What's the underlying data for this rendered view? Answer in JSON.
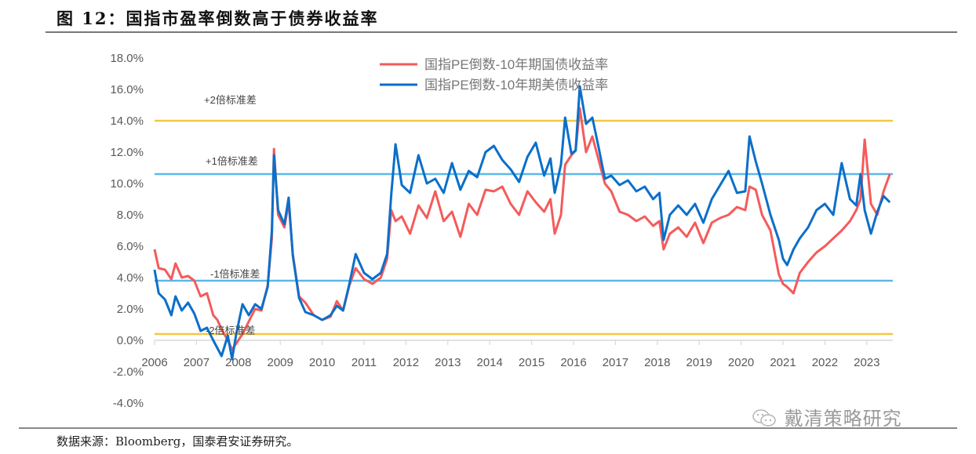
{
  "header": {
    "title": "图 12：国指市盈率倒数高于债券收益率"
  },
  "footer": {
    "source": "数据来源：Bloomberg，国泰君安证券研究。",
    "watermark": "戴清策略研究",
    "watermark_icon": "wechat-icon"
  },
  "chart_data": {
    "type": "line",
    "title": "图 12：国指市盈率倒数高于债券收益率",
    "xlabel": "",
    "ylabel": "",
    "ylim": [
      -4,
      18
    ],
    "xlim": [
      2006,
      2023.6
    ],
    "yticks": [
      "-4.0%",
      "-2.0%",
      "0.0%",
      "2.0%",
      "4.0%",
      "6.0%",
      "8.0%",
      "10.0%",
      "12.0%",
      "14.0%",
      "16.0%",
      "18.0%"
    ],
    "ytick_values": [
      -4,
      -2,
      0,
      2,
      4,
      6,
      8,
      10,
      12,
      14,
      16,
      18
    ],
    "xticks": [
      "2006",
      "2007",
      "2008",
      "2009",
      "2010",
      "2011",
      "2012",
      "2013",
      "2014",
      "2015",
      "2016",
      "2017",
      "2018",
      "2019",
      "2020",
      "2021",
      "2022",
      "2023"
    ],
    "grid": false,
    "legend": {
      "position": "top-center"
    },
    "colors": {
      "cn": "#F45B5B",
      "us": "#0B6FC9",
      "sd2": "#F2C744",
      "sd1": "#5DB8E8",
      "axis": "#D9D9D9"
    },
    "reference_lines": [
      {
        "label": "+2倍标准差",
        "value": 14.0,
        "color_key": "sd2"
      },
      {
        "label": "+1倍标准差",
        "value": 10.6,
        "color_key": "sd1"
      },
      {
        "label": "-1倍标准差",
        "value": 3.8,
        "color_key": "sd1"
      },
      {
        "label": "-2倍标准差",
        "value": 0.4,
        "color_key": "sd2"
      }
    ],
    "series": [
      {
        "name": "国指PE倒数-10年期国债收益率",
        "color_key": "cn",
        "x": [
          2006.0,
          2006.1,
          2006.25,
          2006.4,
          2006.5,
          2006.65,
          2006.8,
          2006.95,
          2007.1,
          2007.25,
          2007.4,
          2007.5,
          2007.6,
          2007.75,
          2007.85,
          2007.95,
          2008.1,
          2008.25,
          2008.4,
          2008.55,
          2008.7,
          2008.8,
          2008.85,
          2008.95,
          2009.1,
          2009.2,
          2009.3,
          2009.45,
          2009.6,
          2009.8,
          2010.0,
          2010.2,
          2010.35,
          2010.5,
          2010.65,
          2010.8,
          2011.0,
          2011.2,
          2011.4,
          2011.55,
          2011.65,
          2011.75,
          2011.9,
          2012.1,
          2012.3,
          2012.5,
          2012.7,
          2012.9,
          2013.1,
          2013.3,
          2013.5,
          2013.7,
          2013.9,
          2014.1,
          2014.3,
          2014.5,
          2014.7,
          2014.9,
          2015.1,
          2015.3,
          2015.45,
          2015.55,
          2015.7,
          2015.8,
          2015.95,
          2016.05,
          2016.15,
          2016.3,
          2016.45,
          2016.6,
          2016.75,
          2016.9,
          2017.1,
          2017.3,
          2017.5,
          2017.7,
          2017.9,
          2018.05,
          2018.15,
          2018.3,
          2018.5,
          2018.7,
          2018.9,
          2019.1,
          2019.3,
          2019.5,
          2019.7,
          2019.9,
          2020.1,
          2020.2,
          2020.35,
          2020.5,
          2020.7,
          2020.9,
          2021.0,
          2021.1,
          2021.25,
          2021.4,
          2021.6,
          2021.8,
          2022.0,
          2022.2,
          2022.4,
          2022.6,
          2022.75,
          2022.85,
          2022.95,
          2023.1,
          2023.25,
          2023.4,
          2023.55
        ],
        "values": [
          5.8,
          4.6,
          4.5,
          3.9,
          4.9,
          4.0,
          4.1,
          3.8,
          2.8,
          3.0,
          1.6,
          1.3,
          0.7,
          0.0,
          -0.6,
          -0.2,
          0.4,
          1.2,
          2.0,
          1.9,
          3.5,
          6.5,
          12.2,
          8.0,
          7.2,
          8.8,
          5.5,
          2.8,
          2.4,
          1.6,
          1.3,
          1.5,
          2.5,
          1.9,
          3.5,
          4.6,
          3.9,
          3.6,
          4.0,
          5.2,
          8.3,
          7.6,
          7.9,
          6.8,
          8.6,
          7.8,
          9.5,
          7.6,
          8.2,
          6.6,
          8.7,
          8.0,
          9.6,
          9.5,
          9.8,
          8.7,
          8.0,
          9.5,
          8.8,
          8.2,
          9.0,
          6.8,
          8.0,
          11.2,
          11.8,
          12.1,
          14.8,
          12.0,
          13.0,
          11.5,
          10.0,
          9.5,
          8.2,
          8.0,
          7.6,
          7.9,
          7.3,
          7.6,
          5.8,
          6.8,
          7.2,
          6.6,
          7.5,
          6.2,
          7.5,
          7.8,
          8.0,
          8.5,
          8.3,
          9.8,
          9.6,
          8.0,
          7.0,
          4.2,
          3.6,
          3.4,
          3.0,
          4.3,
          5.0,
          5.6,
          6.0,
          6.5,
          7.0,
          7.6,
          8.3,
          9.0,
          12.8,
          8.7,
          8.0,
          9.5,
          10.6
        ]
      },
      {
        "name": "国指PE倒数-10年期美债收益率",
        "color_key": "us",
        "x": [
          2006.0,
          2006.1,
          2006.25,
          2006.4,
          2006.5,
          2006.65,
          2006.8,
          2006.95,
          2007.1,
          2007.25,
          2007.4,
          2007.5,
          2007.6,
          2007.75,
          2007.85,
          2007.95,
          2008.1,
          2008.25,
          2008.4,
          2008.55,
          2008.7,
          2008.8,
          2008.85,
          2008.95,
          2009.1,
          2009.2,
          2009.3,
          2009.45,
          2009.6,
          2009.8,
          2010.0,
          2010.2,
          2010.35,
          2010.5,
          2010.65,
          2010.8,
          2011.0,
          2011.2,
          2011.4,
          2011.55,
          2011.65,
          2011.75,
          2011.9,
          2012.1,
          2012.3,
          2012.5,
          2012.7,
          2012.9,
          2013.1,
          2013.3,
          2013.5,
          2013.7,
          2013.9,
          2014.1,
          2014.3,
          2014.5,
          2014.7,
          2014.9,
          2015.1,
          2015.3,
          2015.45,
          2015.55,
          2015.7,
          2015.8,
          2015.95,
          2016.05,
          2016.15,
          2016.3,
          2016.45,
          2016.6,
          2016.75,
          2016.9,
          2017.1,
          2017.3,
          2017.5,
          2017.7,
          2017.9,
          2018.05,
          2018.15,
          2018.3,
          2018.5,
          2018.7,
          2018.9,
          2019.1,
          2019.3,
          2019.5,
          2019.7,
          2019.9,
          2020.1,
          2020.2,
          2020.35,
          2020.5,
          2020.7,
          2020.9,
          2021.0,
          2021.1,
          2021.25,
          2021.4,
          2021.6,
          2021.8,
          2022.0,
          2022.2,
          2022.4,
          2022.6,
          2022.75,
          2022.85,
          2022.95,
          2023.1,
          2023.25,
          2023.4,
          2023.55
        ],
        "values": [
          4.5,
          3.0,
          2.6,
          1.6,
          2.8,
          1.9,
          2.4,
          1.7,
          0.6,
          0.8,
          0.0,
          -0.5,
          -1.0,
          0.3,
          -1.2,
          0.4,
          2.3,
          1.6,
          2.3,
          2.0,
          3.4,
          7.0,
          11.8,
          8.3,
          7.4,
          9.1,
          5.4,
          2.7,
          1.8,
          1.6,
          1.3,
          1.6,
          2.2,
          1.9,
          3.6,
          5.5,
          4.3,
          3.9,
          4.3,
          5.5,
          9.3,
          12.5,
          9.9,
          9.4,
          11.8,
          10.0,
          10.3,
          9.4,
          11.3,
          9.6,
          10.8,
          10.4,
          12.0,
          12.4,
          11.5,
          10.9,
          10.1,
          11.7,
          12.6,
          10.5,
          11.6,
          9.4,
          11.2,
          14.2,
          11.9,
          12.1,
          16.2,
          13.8,
          14.2,
          12.3,
          10.3,
          10.5,
          9.9,
          10.2,
          9.5,
          9.8,
          9.0,
          9.4,
          6.4,
          8.0,
          8.6,
          8.0,
          8.7,
          7.5,
          9.0,
          9.9,
          10.8,
          9.4,
          9.5,
          13.0,
          11.4,
          10.0,
          8.0,
          6.4,
          5.2,
          4.8,
          5.8,
          6.5,
          7.2,
          8.3,
          8.7,
          8.0,
          11.3,
          9.0,
          8.6,
          10.6,
          8.3,
          6.8,
          8.2,
          9.2,
          8.8
        ]
      }
    ]
  }
}
